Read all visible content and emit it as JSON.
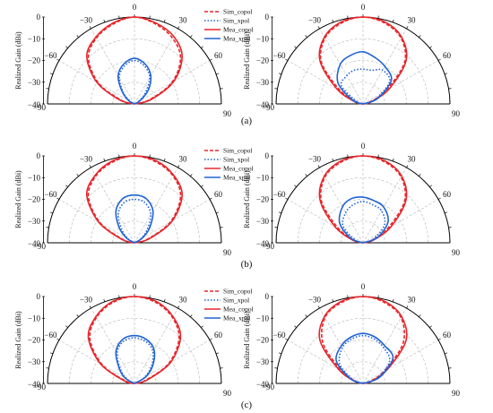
{
  "figure": {
    "captions": [
      "(a)",
      "(b)",
      "(c)"
    ]
  },
  "legend": [
    {
      "label": "Sim_copol",
      "color": "#e8262b",
      "dash": "dash"
    },
    {
      "label": "Sim_xpol",
      "color": "#1f63d6",
      "dash": "dot"
    },
    {
      "label": "Mea_copol",
      "color": "#e8262b",
      "dash": "solid"
    },
    {
      "label": "Mea_xpol",
      "color": "#1f63d6",
      "dash": "solid"
    }
  ],
  "chart_data": [
    {
      "id": "a-left",
      "type": "polar",
      "ylabel": "Realized Gain (dBi)",
      "rlim": [
        -40,
        0
      ],
      "theta_range": [
        -90,
        90
      ],
      "angle_ticks": [
        0,
        30,
        60,
        90,
        -30,
        -60,
        -90
      ],
      "radial_ticks": [
        0,
        -10,
        -20,
        -30,
        -40
      ],
      "grid": true,
      "legend": true,
      "series": [
        {
          "name": "Sim_copol",
          "theta": [
            -90,
            -75,
            -60,
            -45,
            -30,
            -15,
            0,
            15,
            30,
            45,
            60,
            75,
            90
          ],
          "values": [
            -40,
            -34,
            -21,
            -10,
            -5,
            -2,
            0,
            -2,
            -5,
            -10,
            -20,
            -33,
            -40
          ]
        },
        {
          "name": "Mea_copol",
          "theta": [
            -90,
            -75,
            -60,
            -45,
            -30,
            -15,
            0,
            15,
            30,
            45,
            60,
            75,
            90
          ],
          "values": [
            -40,
            -33,
            -20,
            -9,
            -4.5,
            -1.5,
            0,
            -1.5,
            -4,
            -9,
            -19,
            -32,
            -40
          ]
        },
        {
          "name": "Sim_xpol",
          "theta": [
            -90,
            -60,
            -45,
            -30,
            -15,
            0,
            15,
            30,
            45,
            60,
            90
          ],
          "values": [
            -40,
            -38,
            -33,
            -26,
            -22,
            -20,
            -22,
            -26,
            -33,
            -38,
            -40
          ]
        },
        {
          "name": "Mea_xpol",
          "theta": [
            -90,
            -60,
            -45,
            -30,
            -15,
            0,
            15,
            30,
            45,
            60,
            90
          ],
          "values": [
            -40,
            -37,
            -32,
            -25,
            -21,
            -19,
            -21,
            -25,
            -31,
            -37,
            -40
          ]
        }
      ]
    },
    {
      "id": "a-right",
      "type": "polar",
      "ylabel": "Realized Gain (dBi)",
      "rlim": [
        -40,
        0
      ],
      "theta_range": [
        -90,
        90
      ],
      "angle_ticks": [
        0,
        30,
        60,
        90,
        -30,
        -60,
        -90
      ],
      "radial_ticks": [
        0,
        -10,
        -20,
        -30,
        -40
      ],
      "grid": true,
      "legend": false,
      "series": [
        {
          "name": "Sim_copol",
          "theta": [
            -90,
            -75,
            -60,
            -45,
            -30,
            -15,
            0,
            15,
            30,
            45,
            60,
            75,
            90
          ],
          "values": [
            -40,
            -37,
            -28,
            -13,
            -5,
            -1.5,
            0,
            -1.5,
            -5,
            -13,
            -28,
            -37,
            -40
          ]
        },
        {
          "name": "Mea_copol",
          "theta": [
            -90,
            -75,
            -60,
            -45,
            -30,
            -15,
            0,
            15,
            30,
            45,
            60,
            75,
            90
          ],
          "values": [
            -40,
            -36,
            -26,
            -12,
            -4.5,
            -1,
            0,
            -1,
            -4.5,
            -12,
            -26,
            -36,
            -40
          ]
        },
        {
          "name": "Sim_xpol",
          "theta": [
            -90,
            -70,
            -50,
            -30,
            -15,
            0,
            15,
            30,
            50,
            70,
            90
          ],
          "values": [
            -40,
            -37,
            -27,
            -25,
            -24,
            -24,
            -24,
            -22,
            -24,
            -34,
            -40
          ]
        },
        {
          "name": "Mea_xpol",
          "theta": [
            -90,
            -70,
            -50,
            -30,
            -15,
            0,
            15,
            30,
            50,
            70,
            90
          ],
          "values": [
            -40,
            -35,
            -25,
            -19,
            -17,
            -16,
            -18,
            -20,
            -23,
            -33,
            -40
          ]
        }
      ]
    },
    {
      "id": "b-left",
      "type": "polar",
      "ylabel": "Realized Gain (dBi)",
      "rlim": [
        -40,
        0
      ],
      "theta_range": [
        -90,
        90
      ],
      "angle_ticks": [
        0,
        30,
        60,
        90,
        -30,
        -60,
        -90
      ],
      "radial_ticks": [
        0,
        -10,
        -20,
        -30,
        -40
      ],
      "grid": true,
      "legend": true,
      "series": [
        {
          "name": "Sim_copol",
          "theta": [
            -90,
            -75,
            -60,
            -45,
            -30,
            -15,
            0,
            15,
            30,
            45,
            60,
            75,
            90
          ],
          "values": [
            -40,
            -35,
            -22,
            -10,
            -4.5,
            -1.5,
            0,
            -1.5,
            -4.5,
            -10,
            -21,
            -34,
            -40
          ]
        },
        {
          "name": "Mea_copol",
          "theta": [
            -90,
            -75,
            -60,
            -45,
            -30,
            -15,
            0,
            15,
            30,
            45,
            60,
            75,
            90
          ],
          "values": [
            -40,
            -34,
            -21,
            -9,
            -4,
            -1,
            0,
            -1,
            -4,
            -9,
            -20,
            -33,
            -40
          ]
        },
        {
          "name": "Sim_xpol",
          "theta": [
            -90,
            -60,
            -45,
            -30,
            -15,
            0,
            15,
            30,
            45,
            60,
            90
          ],
          "values": [
            -40,
            -37,
            -32,
            -25,
            -21,
            -20,
            -21,
            -25,
            -32,
            -37,
            -40
          ]
        },
        {
          "name": "Mea_xpol",
          "theta": [
            -90,
            -60,
            -45,
            -30,
            -15,
            0,
            15,
            30,
            45,
            60,
            90
          ],
          "values": [
            -40,
            -36,
            -30,
            -23,
            -19,
            -18,
            -19,
            -23,
            -30,
            -36,
            -40
          ]
        }
      ]
    },
    {
      "id": "b-right",
      "type": "polar",
      "ylabel": "Realized Gain (dBi)",
      "rlim": [
        -40,
        0
      ],
      "theta_range": [
        -90,
        90
      ],
      "angle_ticks": [
        0,
        30,
        60,
        90,
        -30,
        -60,
        -90
      ],
      "radial_ticks": [
        0,
        -10,
        -20,
        -30,
        -40
      ],
      "grid": true,
      "legend": false,
      "series": [
        {
          "name": "Sim_copol",
          "theta": [
            -90,
            -75,
            -60,
            -45,
            -30,
            -15,
            0,
            15,
            30,
            45,
            60,
            75,
            90
          ],
          "values": [
            -40,
            -36,
            -27,
            -13,
            -5,
            -1.5,
            0,
            -1.5,
            -5,
            -13,
            -27,
            -36,
            -40
          ]
        },
        {
          "name": "Mea_copol",
          "theta": [
            -90,
            -75,
            -60,
            -45,
            -30,
            -15,
            0,
            15,
            30,
            45,
            60,
            75,
            90
          ],
          "values": [
            -40,
            -35,
            -25,
            -12,
            -4.5,
            -1,
            0,
            -1,
            -4.5,
            -12,
            -25,
            -35,
            -40
          ]
        },
        {
          "name": "Sim_xpol",
          "theta": [
            -90,
            -70,
            -50,
            -30,
            -15,
            0,
            15,
            30,
            50,
            70,
            90
          ],
          "values": [
            -40,
            -36,
            -28,
            -24,
            -22,
            -21,
            -22,
            -23,
            -27,
            -35,
            -40
          ]
        },
        {
          "name": "Mea_xpol",
          "theta": [
            -90,
            -70,
            -50,
            -30,
            -15,
            0,
            15,
            30,
            50,
            70,
            90
          ],
          "values": [
            -40,
            -34,
            -26,
            -21,
            -19,
            -19,
            -20,
            -21,
            -25,
            -33,
            -40
          ]
        }
      ]
    },
    {
      "id": "c-left",
      "type": "polar",
      "ylabel": "Realized Gain (dBi)",
      "rlim": [
        -40,
        0
      ],
      "theta_range": [
        -90,
        90
      ],
      "angle_ticks": [
        0,
        30,
        60,
        90,
        -30,
        -60,
        -90
      ],
      "radial_ticks": [
        0,
        -10,
        -20,
        -30,
        -40
      ],
      "grid": true,
      "legend": true,
      "series": [
        {
          "name": "Sim_copol",
          "theta": [
            -90,
            -75,
            -60,
            -45,
            -30,
            -15,
            0,
            15,
            30,
            45,
            60,
            75,
            90
          ],
          "values": [
            -40,
            -36,
            -23,
            -11,
            -5,
            -1.5,
            0,
            -1.5,
            -5,
            -11,
            -22,
            -35,
            -40
          ]
        },
        {
          "name": "Mea_copol",
          "theta": [
            -90,
            -75,
            -60,
            -45,
            -30,
            -15,
            0,
            15,
            30,
            45,
            60,
            75,
            90
          ],
          "values": [
            -40,
            -35,
            -22,
            -10,
            -4.5,
            -1,
            0,
            -1,
            -4.5,
            -10,
            -21,
            -34,
            -40
          ]
        },
        {
          "name": "Sim_xpol",
          "theta": [
            -90,
            -60,
            -45,
            -30,
            -15,
            0,
            15,
            30,
            45,
            60,
            90
          ],
          "values": [
            -40,
            -36,
            -31,
            -24,
            -20,
            -19,
            -20,
            -23,
            -29,
            -35,
            -40
          ]
        },
        {
          "name": "Mea_xpol",
          "theta": [
            -90,
            -60,
            -45,
            -30,
            -15,
            0,
            15,
            30,
            45,
            60,
            90
          ],
          "values": [
            -40,
            -35,
            -30,
            -23,
            -19,
            -18,
            -19,
            -22,
            -28,
            -34,
            -40
          ]
        }
      ]
    },
    {
      "id": "c-right",
      "type": "polar",
      "ylabel": "Realized Gain (dBi)",
      "rlim": [
        -40,
        0
      ],
      "theta_range": [
        -90,
        90
      ],
      "angle_ticks": [
        0,
        30,
        60,
        90,
        -30,
        -60,
        -90
      ],
      "radial_ticks": [
        0,
        -10,
        -20,
        -30,
        -40
      ],
      "grid": true,
      "legend": false,
      "series": [
        {
          "name": "Sim_copol",
          "theta": [
            -90,
            -75,
            -60,
            -45,
            -30,
            -15,
            0,
            15,
            30,
            45,
            60,
            75,
            90
          ],
          "values": [
            -40,
            -37,
            -29,
            -14,
            -5,
            -1.5,
            0,
            -1.5,
            -5,
            -14,
            -29,
            -37,
            -40
          ]
        },
        {
          "name": "Mea_copol",
          "theta": [
            -90,
            -75,
            -60,
            -45,
            -30,
            -15,
            0,
            15,
            30,
            45,
            60,
            75,
            90
          ],
          "values": [
            -40,
            -36,
            -27,
            -12,
            -4.5,
            -1,
            0,
            -1,
            -4.5,
            -12,
            -27,
            -36,
            -40
          ]
        },
        {
          "name": "Sim_xpol",
          "theta": [
            -90,
            -70,
            -50,
            -30,
            -15,
            0,
            15,
            30,
            50,
            70,
            90
          ],
          "values": [
            -40,
            -35,
            -26,
            -21,
            -19,
            -18,
            -19,
            -21,
            -24,
            -33,
            -40
          ]
        },
        {
          "name": "Mea_xpol",
          "theta": [
            -90,
            -70,
            -50,
            -30,
            -15,
            0,
            15,
            30,
            50,
            70,
            90
          ],
          "values": [
            -40,
            -34,
            -24,
            -20,
            -18,
            -17,
            -18,
            -20,
            -22,
            -32,
            -40
          ]
        }
      ]
    }
  ]
}
